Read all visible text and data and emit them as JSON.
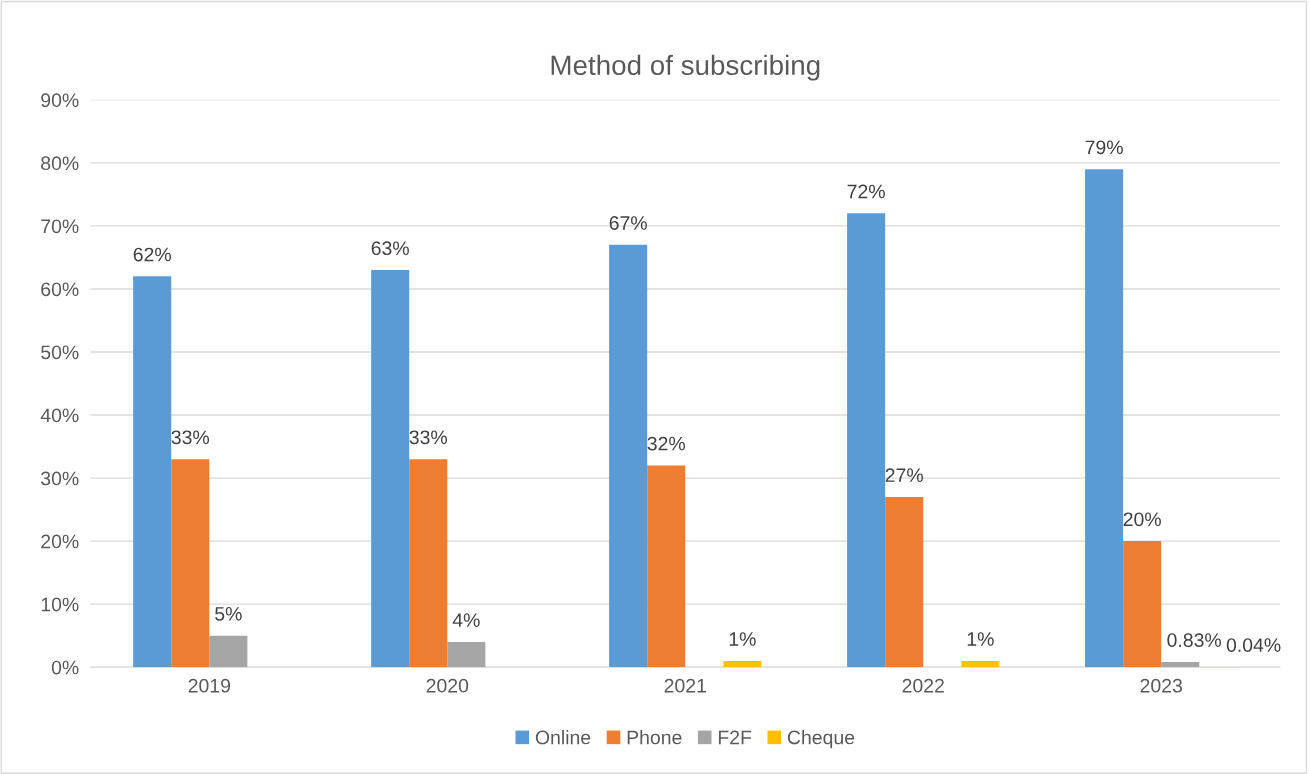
{
  "chart_data": {
    "type": "bar",
    "title": "Method of subscribing",
    "categories": [
      "2019",
      "2020",
      "2021",
      "2022",
      "2023"
    ],
    "series": [
      {
        "name": "Online",
        "color": "#5b9bd5",
        "values": [
          62,
          63,
          67,
          72,
          79
        ],
        "value_labels": [
          "62%",
          "63%",
          "67%",
          "72%",
          "79%"
        ]
      },
      {
        "name": "Phone",
        "color": "#ed7d31",
        "values": [
          33,
          33,
          32,
          27,
          20
        ],
        "value_labels": [
          "33%",
          "33%",
          "32%",
          "27%",
          "20%"
        ]
      },
      {
        "name": "F2F",
        "color": "#a5a5a5",
        "values": [
          5,
          4,
          null,
          null,
          0.83
        ],
        "value_labels": [
          "5%",
          "4%",
          null,
          null,
          "0.83%"
        ]
      },
      {
        "name": "Cheque",
        "color": "#ffc000",
        "values": [
          null,
          null,
          1,
          1,
          0.04
        ],
        "value_labels": [
          null,
          null,
          "1%",
          "1%",
          "0.04%"
        ]
      }
    ],
    "ylim": [
      0,
      90
    ],
    "yticks": [
      {
        "value": 0,
        "label": "0%"
      },
      {
        "value": 10,
        "label": "10%"
      },
      {
        "value": 20,
        "label": "20%"
      },
      {
        "value": 30,
        "label": "30%"
      },
      {
        "value": 40,
        "label": "40%"
      },
      {
        "value": 50,
        "label": "50%"
      },
      {
        "value": 60,
        "label": "60%"
      },
      {
        "value": 70,
        "label": "70%"
      },
      {
        "value": 80,
        "label": "80%"
      },
      {
        "value": 90,
        "label": "90%"
      }
    ],
    "grid": "y",
    "legend": "bottom"
  }
}
